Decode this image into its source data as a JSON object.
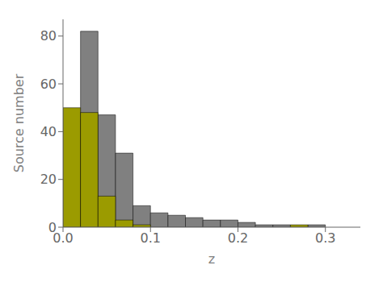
{
  "chart_data": {
    "type": "histogram",
    "xlabel": "z",
    "ylabel": "Source number",
    "bins": [
      0.0,
      0.02,
      0.04,
      0.06,
      0.08,
      0.1,
      0.12,
      0.14,
      0.16,
      0.18,
      0.2,
      0.22,
      0.24,
      0.26,
      0.28,
      0.3,
      0.32,
      0.34
    ],
    "series": [
      {
        "color": "#808080",
        "values": [
          45,
          82,
          47,
          31,
          9,
          6,
          5,
          4,
          3,
          3,
          2,
          1,
          1,
          0,
          1,
          0,
          0
        ]
      },
      {
        "color": "#9b9b00",
        "values": [
          50,
          48,
          13,
          3,
          1,
          0,
          0,
          0,
          0,
          0,
          0,
          0,
          0,
          1,
          0,
          0,
          0
        ]
      }
    ],
    "xlim": [
      0.0,
      0.34
    ],
    "ylim": [
      0,
      87
    ],
    "xticks": [
      {
        "value": 0.0,
        "label": "0.0"
      },
      0.1,
      0.2,
      0.3
    ],
    "yticks": [
      0,
      20,
      40,
      60,
      80
    ],
    "grid": false
  }
}
